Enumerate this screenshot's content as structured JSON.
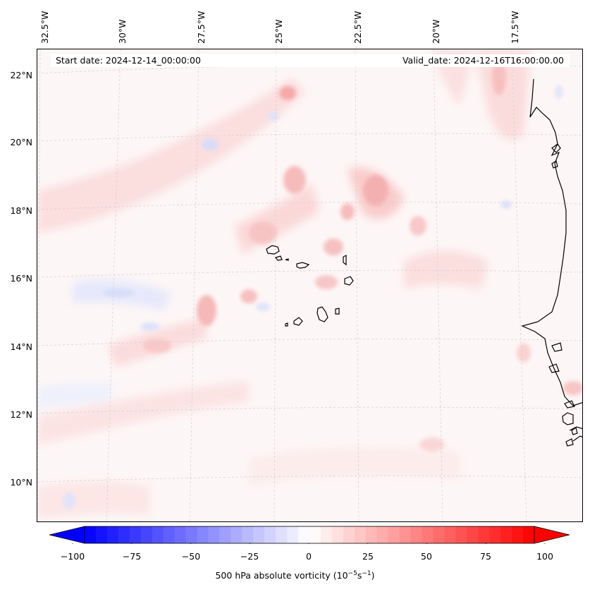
{
  "header": {
    "start_date": "Start date: 2024-12-14_00:00:00",
    "valid_date": "Valid_date: 2024-12-16T16:00:00.00"
  },
  "longitude_labels": [
    "32.5°W",
    "30°W",
    "27.5°W",
    "25°W",
    "22.5°W",
    "20°W",
    "17.5°W"
  ],
  "latitude_labels": [
    "22°N",
    "20°N",
    "18°N",
    "16°N",
    "14°N",
    "12°N",
    "10°N"
  ],
  "colorbar": {
    "ticks": [
      "−100",
      "−75",
      "−50",
      "−25",
      "0",
      "25",
      "50",
      "75",
      "100"
    ],
    "label_prefix": "500 hPa absolute vorticity (10",
    "label_exp1": "−5",
    "label_mid": "s",
    "label_exp2": "−1",
    "label_suffix": ")",
    "min_color": "#0000ff",
    "mid_color": "#ffffff",
    "max_color": "#ff0000"
  },
  "colors": {
    "background_pink": "#fdf6f6",
    "coast": "#000000",
    "grid": "#cccccc"
  }
}
